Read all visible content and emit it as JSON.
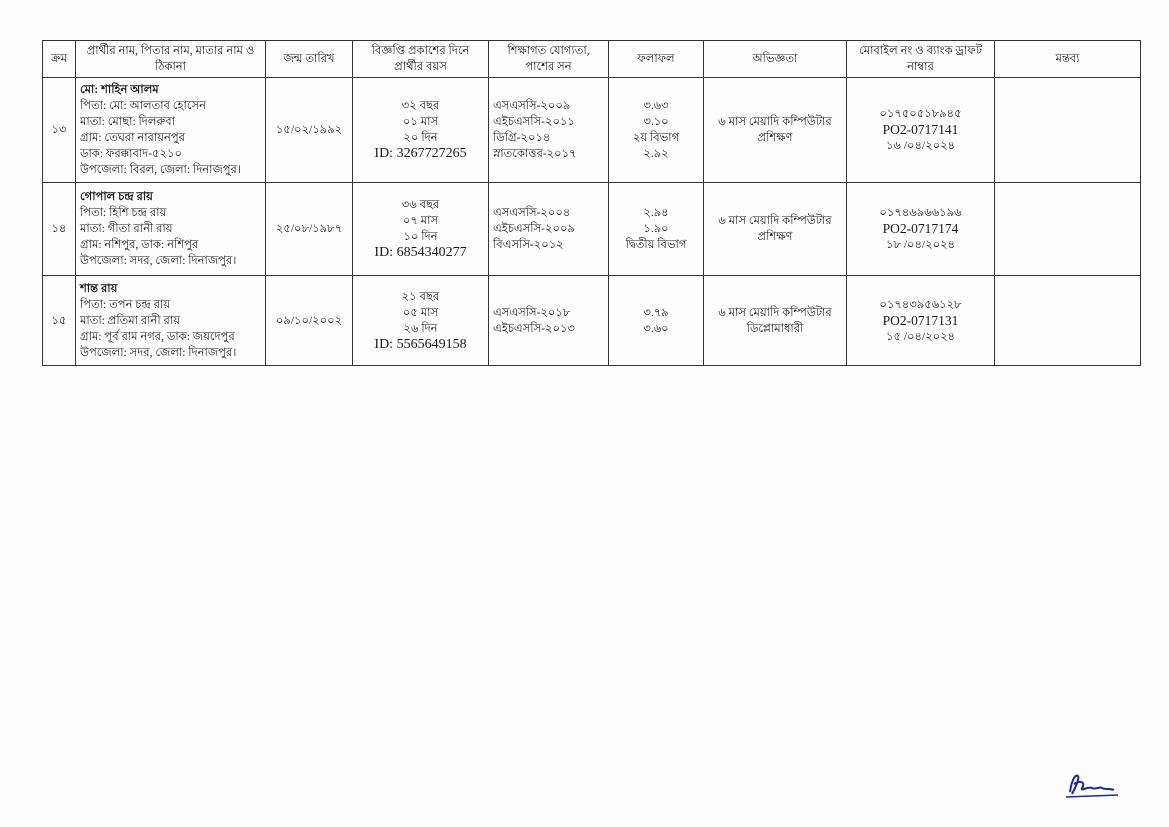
{
  "table": {
    "headers": [
      "ক্রম",
      "প্রার্থীর নাম, পিতার নাম, মাতার নাম ও ঠিকানা",
      "জন্ম তারিখ",
      "বিজ্ঞপ্তি প্রকাশের দিনে প্রার্থীর বয়স",
      "শিক্ষাগত যোগ্যতা, পাশের সন",
      "ফলাফল",
      "অভিজ্ঞতা",
      "মোবাইল নং ও ব্যাংক ড্রাফট নাম্বার",
      "মন্তব্য"
    ],
    "rows": [
      {
        "serial": "১৩",
        "name": "মো: শাহিন আলম",
        "details": [
          "পিতা: মো: আলতাব হোসেন",
          "মাতা: মোছা: দিলরুবা",
          "গ্রাম: তেঘরা নারায়নপুর",
          "ডাক: ফরক্কাবাদ-৫২১০",
          "উপজেলা: বিরল, জেলা: দিনাজপুর।"
        ],
        "dob": "১৫/০২/১৯৯২",
        "age": [
          "৩২ বছর",
          "০১ মাস",
          "২০ দিন"
        ],
        "nid": "ID: 3267727265",
        "education": [
          "এসএসসি-২০০৯",
          "এইচএসসি-২০১১",
          "ডিগ্রি-২০১৪",
          "স্নাতকোত্তর-২০১৭"
        ],
        "result": [
          "৩.৬৩",
          "৩.১০",
          "২য় বিভাগ",
          "২.৯২"
        ],
        "experience": "৬ মাস মেয়াদি কম্পিউটার প্রশিক্ষণ",
        "mobile": "০১৭৫০৫১৮৯৪৫",
        "draft_no": "PO2-0717141",
        "draft_date": "১৬ /০৪/২০২৪",
        "remarks": ""
      },
      {
        "serial": "১৪",
        "name": "গোপাল চন্দ্র রায়",
        "details": [
          "পিতা: হিশি চন্দ্র রায়",
          "মাতা: গীতা রানী রায়",
          "গ্রাম: নশিপুর, ডাক: নশিপুর",
          "উপজেলা: সদর, জেলা: দিনাজপুর।"
        ],
        "dob": "২৫/০৮/১৯৮৭",
        "age": [
          "৩৬ বছর",
          "০৭ মাস",
          "১০ দিন"
        ],
        "nid": "ID: 6854340277",
        "education": [
          "এসএসসি-২০০৪",
          "এইচএসসি-২০০৯",
          "বিএসসি-২০১২"
        ],
        "result": [
          "২.৯৪",
          "১.৯০",
          "দ্বিতীয় বিভাগ"
        ],
        "experience": "৬ মাস মেয়াদি কম্পিউটার প্রশিক্ষণ",
        "mobile": "০১৭৪৬৯৬৬১৯৬",
        "draft_no": "PO2-0717174",
        "draft_date": "১৮ /০৪/২০২৪",
        "remarks": ""
      },
      {
        "serial": "১৫",
        "name": "শান্ত রায়",
        "details": [
          "পিতা: তপন চন্দ্র রায়",
          "মাতা: প্রতিমা রানী রায়",
          "গ্রাম: পূর্ব রাম নগর, ডাক: জয়দেপুর",
          "উপজেলা: সদর, জেলা: দিনাজপুর।"
        ],
        "dob": "০৯/১০/২০০২",
        "age": [
          "২১ বছর",
          "০৫ মাস",
          "২৬ দিন"
        ],
        "nid": "ID: 5565649158",
        "education": [
          "এসএসসি-২০১৮",
          "এইচএসসি-২০১৩"
        ],
        "result": [
          "৩.৭৯",
          "৩.৬০"
        ],
        "experience": "৬ মাস মেয়াদি কম্পিউটার ডিপ্লোমাধারী",
        "mobile": "০১৭৪৩৯৫৬১২৮",
        "draft_no": "PO2-0717131",
        "draft_date": "১৫ /০৪/২০২৪",
        "remarks": ""
      }
    ]
  }
}
